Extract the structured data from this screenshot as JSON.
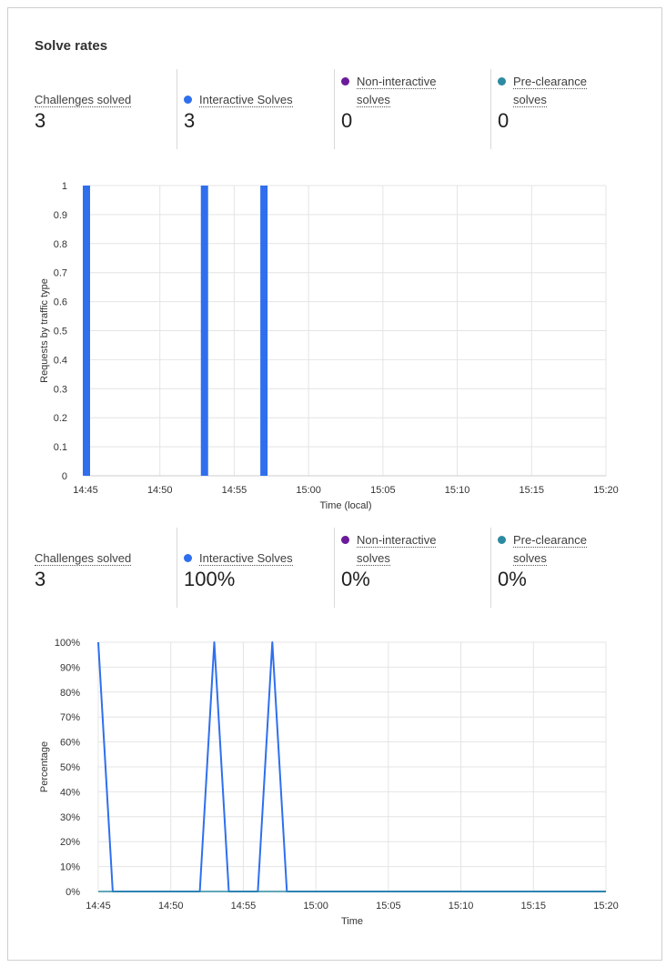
{
  "title": "Solve rates",
  "stats_top": [
    {
      "label": "Challenges solved",
      "value": "3",
      "dot": ""
    },
    {
      "label": "Interactive Solves",
      "value": "3",
      "dot": "#2f6fed"
    },
    {
      "label": "Non-interactive",
      "label2": "solves",
      "value": "0",
      "dot": "#6a1b9a"
    },
    {
      "label": "Pre-clearance",
      "label2": "solves",
      "value": "0",
      "dot": "#2d8aa0"
    }
  ],
  "stats_bottom": [
    {
      "label": "Challenges solved",
      "value": "3",
      "dot": ""
    },
    {
      "label": "Interactive Solves",
      "value": "100%",
      "dot": "#2f6fed"
    },
    {
      "label": "Non-interactive",
      "label2": "solves",
      "value": "0%",
      "dot": "#6a1b9a"
    },
    {
      "label": "Pre-clearance",
      "label2": "solves",
      "value": "0%",
      "dot": "#2d8aa0"
    }
  ],
  "chart_data": [
    {
      "type": "bar",
      "ylabel": "Requests by traffic type",
      "xlabel": "Time (local)",
      "ylim": [
        0,
        1
      ],
      "yticks": [
        "0",
        "0.1",
        "0.2",
        "0.3",
        "0.4",
        "0.5",
        "0.6",
        "0.7",
        "0.8",
        "0.9",
        "1"
      ],
      "xticks": [
        "14:45",
        "14:50",
        "14:55",
        "15:00",
        "15:05",
        "15:10",
        "15:15",
        "15:20"
      ],
      "xlim": [
        "14:45",
        "15:20"
      ],
      "grid": true,
      "color": "#2f6fed",
      "series": [
        {
          "name": "Interactive Solves",
          "x": [
            "14:45",
            "14:53",
            "14:57"
          ],
          "values": [
            1,
            1,
            1
          ]
        }
      ]
    },
    {
      "type": "line",
      "ylabel": "Percentage",
      "xlabel": "Time",
      "ylim": [
        0,
        100
      ],
      "yticks": [
        "0%",
        "10%",
        "20%",
        "30%",
        "40%",
        "50%",
        "60%",
        "70%",
        "80%",
        "90%",
        "100%"
      ],
      "xticks": [
        "14:45",
        "14:50",
        "14:55",
        "15:00",
        "15:05",
        "15:10",
        "15:15",
        "15:20"
      ],
      "xlim": [
        "14:45",
        "15:20"
      ],
      "grid": true,
      "series": [
        {
          "name": "Interactive Solves",
          "color": "#2f6fed",
          "x": [
            "14:45",
            "14:46",
            "14:52",
            "14:53",
            "14:54",
            "14:56",
            "14:57",
            "14:58",
            "15:20"
          ],
          "values": [
            100,
            0,
            0,
            100,
            0,
            0,
            100,
            0,
            0
          ]
        },
        {
          "name": "Pre-clearance solves",
          "color": "#2d8aa0",
          "x": [
            "14:45",
            "15:20"
          ],
          "values": [
            0,
            0
          ]
        }
      ]
    }
  ]
}
